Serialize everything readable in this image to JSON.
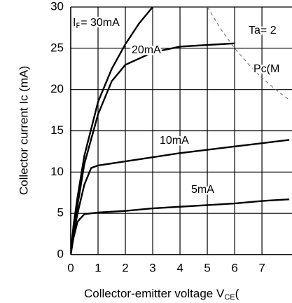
{
  "chart_data": {
    "type": "line",
    "y_label": "Collector current Ic (mA)",
    "x_label": {
      "text": "Collector-emitter voltage V",
      "sub": "CE",
      "rest": "("
    },
    "annotations": [
      "Ta= 2",
      "Pc(M"
    ],
    "xlim": [
      0,
      8.1
    ],
    "xticks": [
      0,
      1,
      2,
      3,
      4,
      5,
      6,
      7
    ],
    "ylim": [
      0,
      30
    ],
    "yticks": [
      0,
      5,
      10,
      15,
      20,
      25,
      30
    ],
    "grid": true,
    "series": [
      {
        "name": "= 30mA",
        "name_prefix": "I",
        "name_sub": "F",
        "color": "#000000",
        "x": [
          0,
          0.1,
          0.25,
          0.5,
          1,
          1.5,
          2,
          2.5,
          3
        ],
        "values": [
          0,
          3.5,
          7,
          12,
          18.5,
          22.5,
          25.5,
          28,
          30
        ]
      },
      {
        "name": "20mA",
        "color": "#000000",
        "x": [
          0,
          0.1,
          0.25,
          0.5,
          1,
          1.5,
          2,
          3,
          4,
          5,
          6
        ],
        "values": [
          0,
          3,
          6,
          11,
          17,
          21,
          23,
          24.5,
          25.2,
          25.4,
          25.6
        ]
      },
      {
        "name": "10mA",
        "color": "#000000",
        "x": [
          0,
          0.1,
          0.25,
          0.5,
          0.75,
          1,
          2,
          3,
          4,
          5,
          6,
          7,
          8
        ],
        "values": [
          0,
          2.5,
          5,
          8.5,
          10.5,
          10.8,
          11.3,
          11.8,
          12.3,
          12.7,
          13.1,
          13.5,
          13.9
        ]
      },
      {
        "name": "5mA",
        "color": "#000000",
        "x": [
          0,
          0.1,
          0.25,
          0.5,
          1,
          2,
          3,
          4,
          5,
          6,
          7,
          8
        ],
        "values": [
          0,
          2,
          4,
          4.9,
          5.1,
          5.3,
          5.6,
          5.8,
          6,
          6.2,
          6.5,
          6.7
        ]
      },
      {
        "name": "Pc",
        "dashed": true,
        "color": "#666666",
        "x": [
          5,
          5.5,
          6,
          6.5,
          7,
          7.5,
          8
        ],
        "values": [
          30,
          27.3,
          25,
          23.1,
          21.4,
          20,
          18.75
        ]
      }
    ]
  }
}
